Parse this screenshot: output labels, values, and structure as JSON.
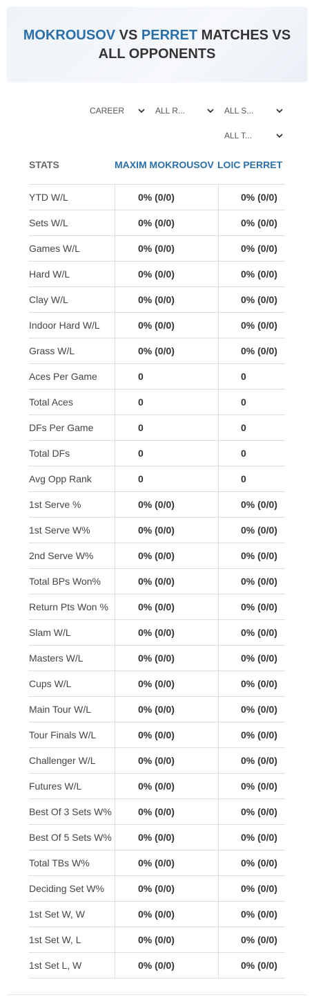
{
  "header": {
    "player1": "MOKROUSOV",
    "vs": "VS",
    "player2": "PERRET",
    "suffix": "MATCHES VS ALL OPPONENTS"
  },
  "filters": [
    "CAREER",
    "ALL R...",
    "ALL S...",
    "ALL T..."
  ],
  "table": {
    "columns": [
      "STATS",
      "MAXIM MOKROUSOV",
      "LOIC PERRET"
    ],
    "rows": [
      [
        "YTD W/L",
        "0% (0/0)",
        "0% (0/0)"
      ],
      [
        "Sets W/L",
        "0% (0/0)",
        "0% (0/0)"
      ],
      [
        "Games W/L",
        "0% (0/0)",
        "0% (0/0)"
      ],
      [
        "Hard W/L",
        "0% (0/0)",
        "0% (0/0)"
      ],
      [
        "Clay W/L",
        "0% (0/0)",
        "0% (0/0)"
      ],
      [
        "Indoor Hard W/L",
        "0% (0/0)",
        "0% (0/0)"
      ],
      [
        "Grass W/L",
        "0% (0/0)",
        "0% (0/0)"
      ],
      [
        "Aces Per Game",
        0,
        0
      ],
      [
        "Total Aces",
        0,
        0
      ],
      [
        "DFs Per Game",
        0,
        0
      ],
      [
        "Total DFs",
        0,
        0
      ],
      [
        "Avg Opp Rank",
        0,
        0
      ],
      [
        "1st Serve %",
        "0% (0/0)",
        "0% (0/0)"
      ],
      [
        "1st Serve W%",
        "0% (0/0)",
        "0% (0/0)"
      ],
      [
        "2nd Serve W%",
        "0% (0/0)",
        "0% (0/0)"
      ],
      [
        "Total BPs Won%",
        "0% (0/0)",
        "0% (0/0)"
      ],
      [
        "Return Pts Won %",
        "0% (0/0)",
        "0% (0/0)"
      ],
      [
        "Slam W/L",
        "0% (0/0)",
        "0% (0/0)"
      ],
      [
        "Masters W/L",
        "0% (0/0)",
        "0% (0/0)"
      ],
      [
        "Cups W/L",
        "0% (0/0)",
        "0% (0/0)"
      ],
      [
        "Main Tour W/L",
        "0% (0/0)",
        "0% (0/0)"
      ],
      [
        "Tour Finals W/L",
        "0% (0/0)",
        "0% (0/0)"
      ],
      [
        "Challenger W/L",
        "0% (0/0)",
        "0% (0/0)"
      ],
      [
        "Futures W/L",
        "0% (0/0)",
        "0% (0/0)"
      ],
      [
        "Best Of 3 Sets W%",
        "0% (0/0)",
        "0% (0/0)"
      ],
      [
        "Best Of 5 Sets W%",
        "0% (0/0)",
        "0% (0/0)"
      ],
      [
        "Total TBs W%",
        "0% (0/0)",
        "0% (0/0)"
      ],
      [
        "Deciding Set W%",
        "0% (0/0)",
        "0% (0/0)"
      ],
      [
        "1st Set W, W",
        "0% (0/0)",
        "0% (0/0)"
      ],
      [
        "1st Set W, L",
        "0% (0/0)",
        "0% (0/0)"
      ],
      [
        "1st Set L, W",
        "0% (0/0)",
        "0% (0/0)"
      ]
    ]
  }
}
